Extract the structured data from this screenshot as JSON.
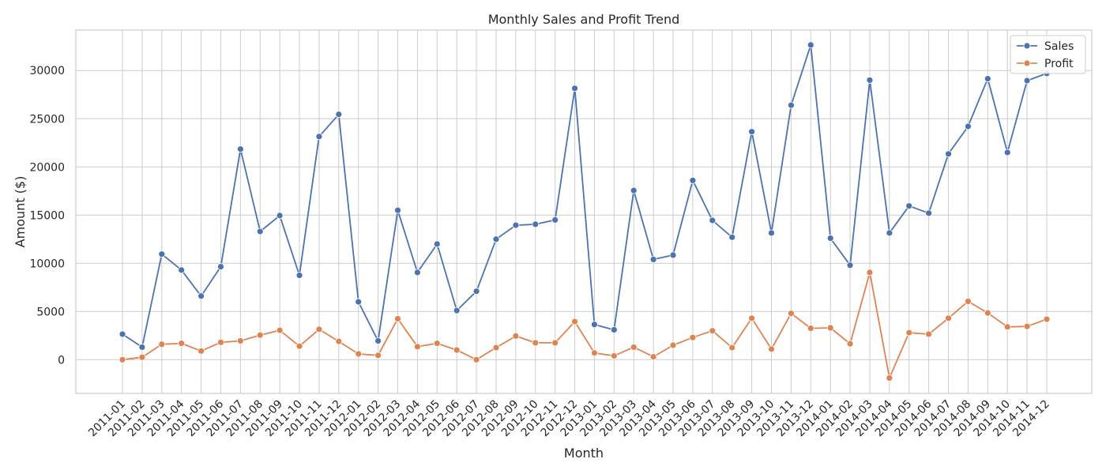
{
  "chart_data": {
    "type": "line",
    "title": "Monthly Sales and Profit Trend",
    "xlabel": "Month",
    "ylabel": "Amount ($)",
    "ylim": [
      -3500,
      34200
    ],
    "yticks": [
      0,
      5000,
      10000,
      15000,
      20000,
      25000,
      30000
    ],
    "grid": true,
    "legend_position": "top-right",
    "categories": [
      "2011-01",
      "2011-02",
      "2011-03",
      "2011-04",
      "2011-05",
      "2011-06",
      "2011-07",
      "2011-08",
      "2011-09",
      "2011-10",
      "2011-11",
      "2011-12",
      "2012-01",
      "2012-02",
      "2012-03",
      "2012-04",
      "2012-05",
      "2012-06",
      "2012-07",
      "2012-08",
      "2012-09",
      "2012-10",
      "2012-11",
      "2012-12",
      "2013-01",
      "2013-02",
      "2013-03",
      "2013-04",
      "2013-05",
      "2013-06",
      "2013-07",
      "2013-08",
      "2013-09",
      "2013-10",
      "2013-11",
      "2013-12",
      "2014-01",
      "2014-02",
      "2014-03",
      "2014-04",
      "2014-05",
      "2014-06",
      "2014-07",
      "2014-08",
      "2014-09",
      "2014-10",
      "2014-11",
      "2014-12"
    ],
    "series": [
      {
        "name": "Sales",
        "color": "#4c72b0",
        "values": [
          2650,
          1300,
          10950,
          9300,
          6600,
          9650,
          21850,
          13300,
          14950,
          8750,
          23150,
          25450,
          6000,
          1950,
          15500,
          9050,
          12000,
          5100,
          7100,
          12500,
          13950,
          14050,
          14500,
          28150,
          3650,
          3100,
          17550,
          10400,
          10850,
          18600,
          14450,
          12700,
          23650,
          13150,
          26400,
          32650,
          12600,
          9800,
          29000,
          13150,
          15950,
          15200,
          21350,
          24200,
          29150,
          21500,
          28950,
          29700
        ]
      },
      {
        "name": "Profit",
        "color": "#dd8452",
        "values": [
          0,
          250,
          1600,
          1700,
          900,
          1800,
          1950,
          2550,
          3050,
          1400,
          3150,
          1900,
          600,
          450,
          4250,
          1350,
          1700,
          1000,
          0,
          1250,
          2450,
          1750,
          1750,
          3950,
          700,
          400,
          1300,
          300,
          1500,
          2300,
          3000,
          1250,
          4300,
          1100,
          4800,
          3250,
          3300,
          1650,
          9050,
          -1900,
          2800,
          2650,
          4300,
          6050,
          4850,
          3400,
          3450,
          4200
        ]
      }
    ]
  }
}
